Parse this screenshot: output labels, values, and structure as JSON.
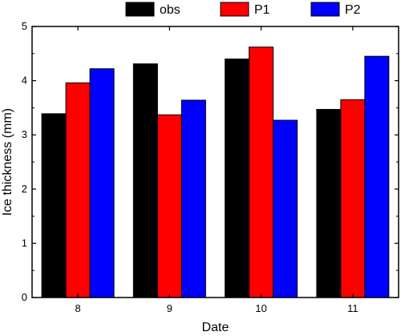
{
  "chart_data": {
    "type": "bar",
    "categories": [
      "8",
      "9",
      "10",
      "11"
    ],
    "series": [
      {
        "name": "obs",
        "color": "#000000",
        "values": [
          3.39,
          4.31,
          4.4,
          3.47
        ]
      },
      {
        "name": "P1",
        "color": "#ff0000",
        "values": [
          3.96,
          3.37,
          4.62,
          3.65
        ]
      },
      {
        "name": "P2",
        "color": "#0000ff",
        "values": [
          4.22,
          3.64,
          3.27,
          4.45
        ]
      }
    ],
    "xlabel": "Date",
    "ylabel": "Ice thickness (mm)",
    "ylim": [
      0,
      5
    ],
    "yticks": [
      "0",
      "1",
      "2",
      "3",
      "4",
      "5"
    ],
    "grid": false,
    "legend_position": "top"
  }
}
